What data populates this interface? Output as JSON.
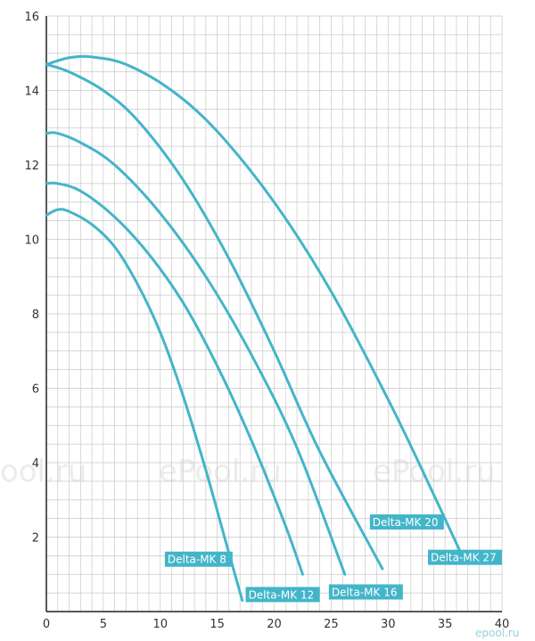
{
  "chart_data": {
    "type": "line",
    "title": "",
    "xlabel": "",
    "ylabel": "",
    "xlim": [
      0,
      40
    ],
    "ylim": [
      0,
      16
    ],
    "x_ticks": [
      0,
      5,
      10,
      15,
      20,
      25,
      30,
      35,
      40
    ],
    "y_ticks": [
      2,
      4,
      6,
      8,
      10,
      12,
      14,
      16
    ],
    "grid": true,
    "line_color": "#43b5c9",
    "series": [
      {
        "name": "Delta-MK 8",
        "x": [
          0,
          1,
          2,
          4,
          6,
          8,
          10,
          12,
          14,
          16,
          17.2
        ],
        "y": [
          10.65,
          10.8,
          10.75,
          10.4,
          9.8,
          8.8,
          7.5,
          5.8,
          3.8,
          1.6,
          0.3
        ]
      },
      {
        "name": "Delta-MK 12",
        "x": [
          0,
          1,
          3,
          6,
          9,
          12,
          15,
          18,
          21,
          22.5
        ],
        "y": [
          11.5,
          11.5,
          11.3,
          10.6,
          9.6,
          8.3,
          6.6,
          4.6,
          2.3,
          1.0
        ]
      },
      {
        "name": "Delta-MK 16",
        "x": [
          0,
          1,
          3,
          6,
          10,
          14,
          18,
          22,
          26.2
        ],
        "y": [
          12.85,
          12.85,
          12.6,
          12.0,
          10.7,
          9.0,
          6.9,
          4.4,
          1.0
        ]
      },
      {
        "name": "Delta-MK 20",
        "x": [
          0,
          2,
          5,
          8,
          12,
          16,
          20,
          24,
          29.5
        ],
        "y": [
          14.7,
          14.5,
          14.0,
          13.2,
          11.6,
          9.5,
          7.0,
          4.3,
          1.15
        ]
      },
      {
        "name": "Delta-MK 27",
        "x": [
          0,
          2,
          4,
          7,
          11,
          15,
          20,
          25,
          30,
          33,
          36.5
        ],
        "y": [
          14.7,
          14.88,
          14.9,
          14.7,
          14.0,
          12.9,
          11.0,
          8.6,
          5.7,
          3.8,
          1.5
        ]
      }
    ],
    "labels": [
      {
        "series": "Delta-MK 8",
        "text": "Delta-MK 8",
        "x": 10.4,
        "y": 1.3
      },
      {
        "series": "Delta-MK 12",
        "text": "Delta-MK 12",
        "x": 17.5,
        "y": 0.35
      },
      {
        "series": "Delta-MK 16",
        "text": "Delta-MK 16",
        "x": 24.8,
        "y": 0.42
      },
      {
        "series": "Delta-MK 20",
        "text": "Delta-MK 20",
        "x": 28.4,
        "y": 2.3
      },
      {
        "series": "Delta-MK 27",
        "text": "Delta-MK 27",
        "x": 33.5,
        "y": 1.35
      }
    ]
  },
  "watermarks": [
    "ool.ru",
    "ePool.ru",
    "ePool.ru"
  ],
  "corner_mark": "epool.ru"
}
